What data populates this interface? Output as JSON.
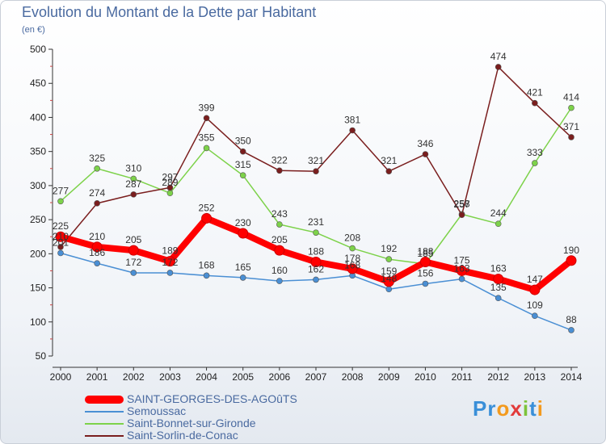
{
  "title": "Evolution du Montant de la Dette par Habitant",
  "subtitle": "(en €)",
  "logo": "Proxiti",
  "colors": {
    "axis": "#333333",
    "grid": "#d0d7e2",
    "tick_text": "#222222",
    "label_text": "#333333",
    "legend_text": "#4a6aa0"
  },
  "chart_data": {
    "type": "line",
    "x": [
      "2000",
      "2001",
      "2002",
      "2003",
      "2004",
      "2005",
      "2006",
      "2007",
      "2008",
      "2009",
      "2010",
      "2011",
      "2012",
      "2013",
      "2014"
    ],
    "ylim": [
      50,
      500
    ],
    "yticks": [
      50,
      100,
      150,
      200,
      250,
      300,
      350,
      400,
      450,
      500
    ],
    "grid": false,
    "legend_position": "bottom-left",
    "series": [
      {
        "name": "Semoussac",
        "color": "#4a8fd4",
        "values": [
          201,
          186,
          172,
          172,
          168,
          165,
          160,
          162,
          168,
          148,
          156,
          163,
          135,
          109,
          88
        ],
        "labels": [
          "201",
          "186",
          "172",
          "172",
          "168",
          "165",
          "160",
          "162",
          "168",
          "148",
          "156",
          "163",
          "135",
          "109",
          "88"
        ]
      },
      {
        "name": "Saint-Bonnet-sur-Gironde",
        "color": "#7dd24a",
        "values": [
          277,
          325,
          310,
          289,
          355,
          315,
          243,
          231,
          208,
          192,
          185,
          258,
          244,
          333,
          414
        ],
        "labels": [
          "277",
          "325",
          "310",
          "289",
          "355",
          "315",
          "243",
          "231",
          "208",
          "192",
          "185",
          "258",
          "244",
          "333",
          "414"
        ]
      },
      {
        "name": "Saint-Sorlin-de-Conac",
        "color": "#7a1e1e",
        "values": [
          210,
          274,
          287,
          297,
          399,
          350,
          322,
          321,
          381,
          321,
          346,
          257,
          474,
          421,
          371
        ],
        "labels": [
          "210",
          "274",
          "287",
          "297",
          "399",
          "350",
          "322",
          "321",
          "381",
          "321",
          "346",
          "257",
          "474",
          "421",
          "371"
        ]
      },
      {
        "name": "SAINT-GEORGES-DES-AGOûTS",
        "color": "#ff0000",
        "values": [
          225,
          210,
          205,
          189,
          252,
          230,
          205,
          188,
          178,
          159,
          188,
          175,
          163,
          147,
          190
        ],
        "labels": [
          "225",
          "210",
          "205",
          "189",
          "252",
          "230",
          "205",
          "188",
          "178",
          "159",
          "188",
          "175",
          "163",
          "147",
          "190"
        ]
      }
    ]
  },
  "legend": [
    {
      "label": "SAINT-GEORGES-DES-AGOûTS",
      "color": "#ff0000",
      "thick": true
    },
    {
      "label": "Semoussac",
      "color": "#4a8fd4",
      "thick": false
    },
    {
      "label": "Saint-Bonnet-sur-Gironde",
      "color": "#7dd24a",
      "thick": false
    },
    {
      "label": "Saint-Sorlin-de-Conac",
      "color": "#7a1e1e",
      "thick": false
    }
  ]
}
